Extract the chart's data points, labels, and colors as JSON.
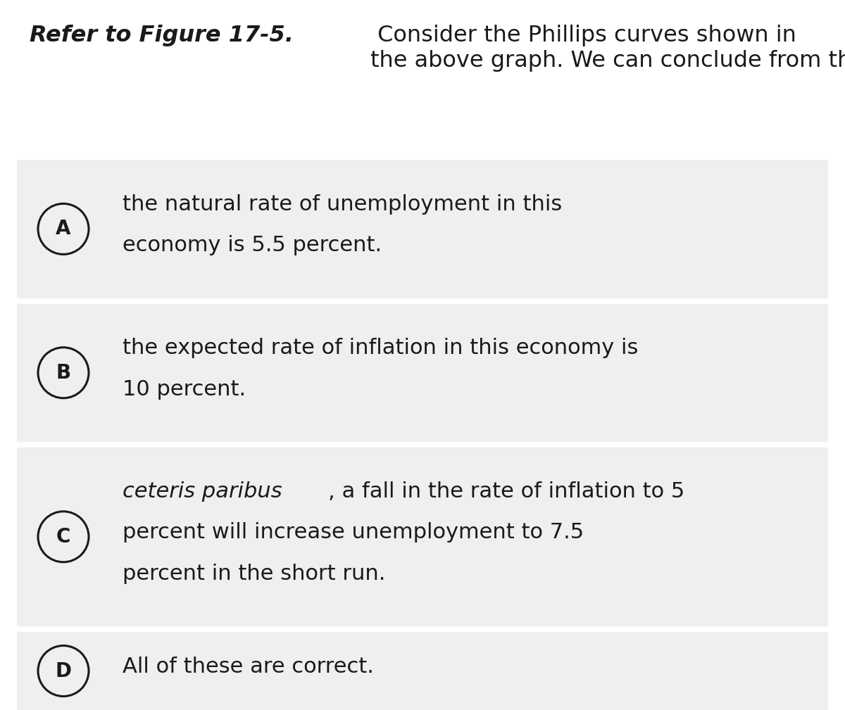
{
  "title_bold_part": "Refer to Figure 17-5.",
  "title_normal_part": " Consider the Phillips curves shown in\nthe above graph. We can conclude from this graph that",
  "background_color": "#ffffff",
  "option_bg_color": "#efefef",
  "options": [
    {
      "letter": "A",
      "lines": [
        [
          {
            "text": "the natural rate of unemployment in this",
            "italic": false
          }
        ],
        [
          {
            "text": "economy is 5.5 percent.",
            "italic": false
          }
        ]
      ]
    },
    {
      "letter": "B",
      "lines": [
        [
          {
            "text": "the expected rate of inflation in this economy is",
            "italic": false
          }
        ],
        [
          {
            "text": "10 percent.",
            "italic": false
          }
        ]
      ]
    },
    {
      "letter": "C",
      "lines": [
        [
          {
            "text": "ceteris paribus",
            "italic": true
          },
          {
            "text": ", a fall in the rate of inflation to 5",
            "italic": false
          }
        ],
        [
          {
            "text": "percent will increase unemployment to 7.5",
            "italic": false
          }
        ],
        [
          {
            "text": "percent in the short run.",
            "italic": false
          }
        ]
      ]
    },
    {
      "letter": "D",
      "lines": [
        [
          {
            "text": "All of these are correct.",
            "italic": false
          }
        ]
      ]
    }
  ],
  "title_fontsize": 23,
  "option_fontsize": 22,
  "circle_fontsize": 20,
  "fig_width": 12.0,
  "fig_height": 10.09,
  "dpi": 100
}
